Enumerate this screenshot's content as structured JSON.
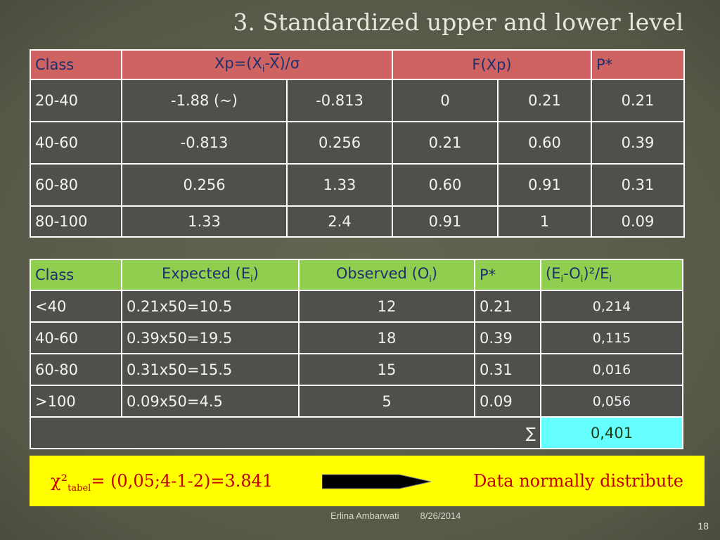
{
  "title": "3. Standardized upper and lower level",
  "table1": {
    "header": [
      [
        "Class"
      ],
      [
        "Xp=(X",
        "i",
        "-",
        "X",
        ")/σ"
      ],
      [
        "F(Xp)"
      ],
      [
        "P*"
      ]
    ],
    "rows": [
      [
        "20-40",
        "-1.88 (~)",
        "-0.813",
        "0",
        "0.21",
        "0.21"
      ],
      [
        "40-60",
        "-0.813",
        "0.256",
        "0.21",
        "0.60",
        "0.39"
      ],
      [
        "60-80",
        "0.256",
        "1.33",
        "0.60",
        "0.91",
        "0.31"
      ],
      [
        "80-100",
        "1.33",
        "2.4",
        "0.91",
        "1",
        "0.09"
      ]
    ]
  },
  "table2": {
    "header": [
      [
        "Class"
      ],
      [
        "Expected (E",
        "i",
        ")"
      ],
      [
        "Observed (O",
        "i",
        ")"
      ],
      [
        "P*"
      ],
      [
        "(E",
        "i",
        "-O",
        "i",
        ")²/E",
        "i"
      ]
    ],
    "rows": [
      [
        "<40",
        "0.21x50=10.5",
        "12",
        "0.21",
        "0,214"
      ],
      [
        "40-60",
        "0.39x50=19.5",
        "18",
        "0.39",
        "0,115"
      ],
      [
        "60-80",
        "0.31x50=15.5",
        "15",
        "0.31",
        "0,016"
      ],
      [
        ">100",
        "0.09x50=4.5",
        "5",
        "0.09",
        "0,056"
      ]
    ],
    "sum_symbol": "∑",
    "sum_value": "0,401"
  },
  "callout": {
    "chi": "χ²",
    "sub": "tabel",
    "formula": "= (0,05;4-1-2)=3.841",
    "conclusion": "Data normally distribute"
  },
  "footer": {
    "author": "Erlina Ambarwati",
    "date": "8/26/2014",
    "page": "18"
  }
}
